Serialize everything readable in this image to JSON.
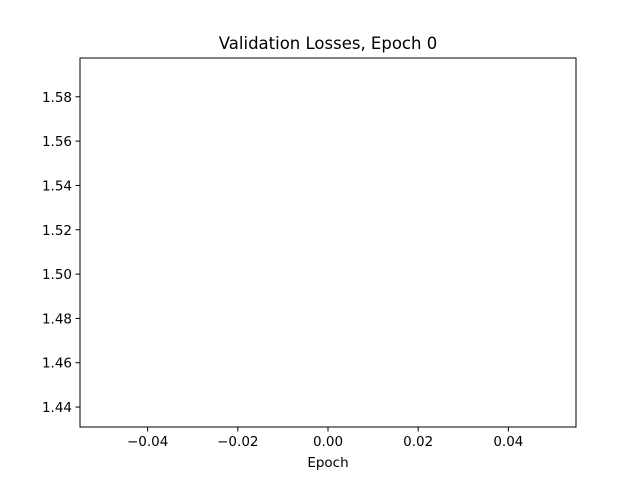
{
  "chart_data": {
    "type": "line",
    "title": "Validation Losses, Epoch 0",
    "xlabel": "Epoch",
    "ylabel": "",
    "xlim": [
      -0.055,
      0.055
    ],
    "ylim": [
      1.431,
      1.5975
    ],
    "xticks": [
      -0.04,
      -0.02,
      0.0,
      0.02,
      0.04
    ],
    "xtick_labels": [
      "−0.04",
      "−0.02",
      "0.00",
      "0.02",
      "0.04"
    ],
    "yticks": [
      1.44,
      1.46,
      1.48,
      1.5,
      1.52,
      1.54,
      1.56,
      1.58
    ],
    "ytick_labels": [
      "1.44",
      "1.46",
      "1.48",
      "1.50",
      "1.52",
      "1.54",
      "1.56",
      "1.58"
    ],
    "grid": false,
    "legend": false,
    "series": []
  }
}
